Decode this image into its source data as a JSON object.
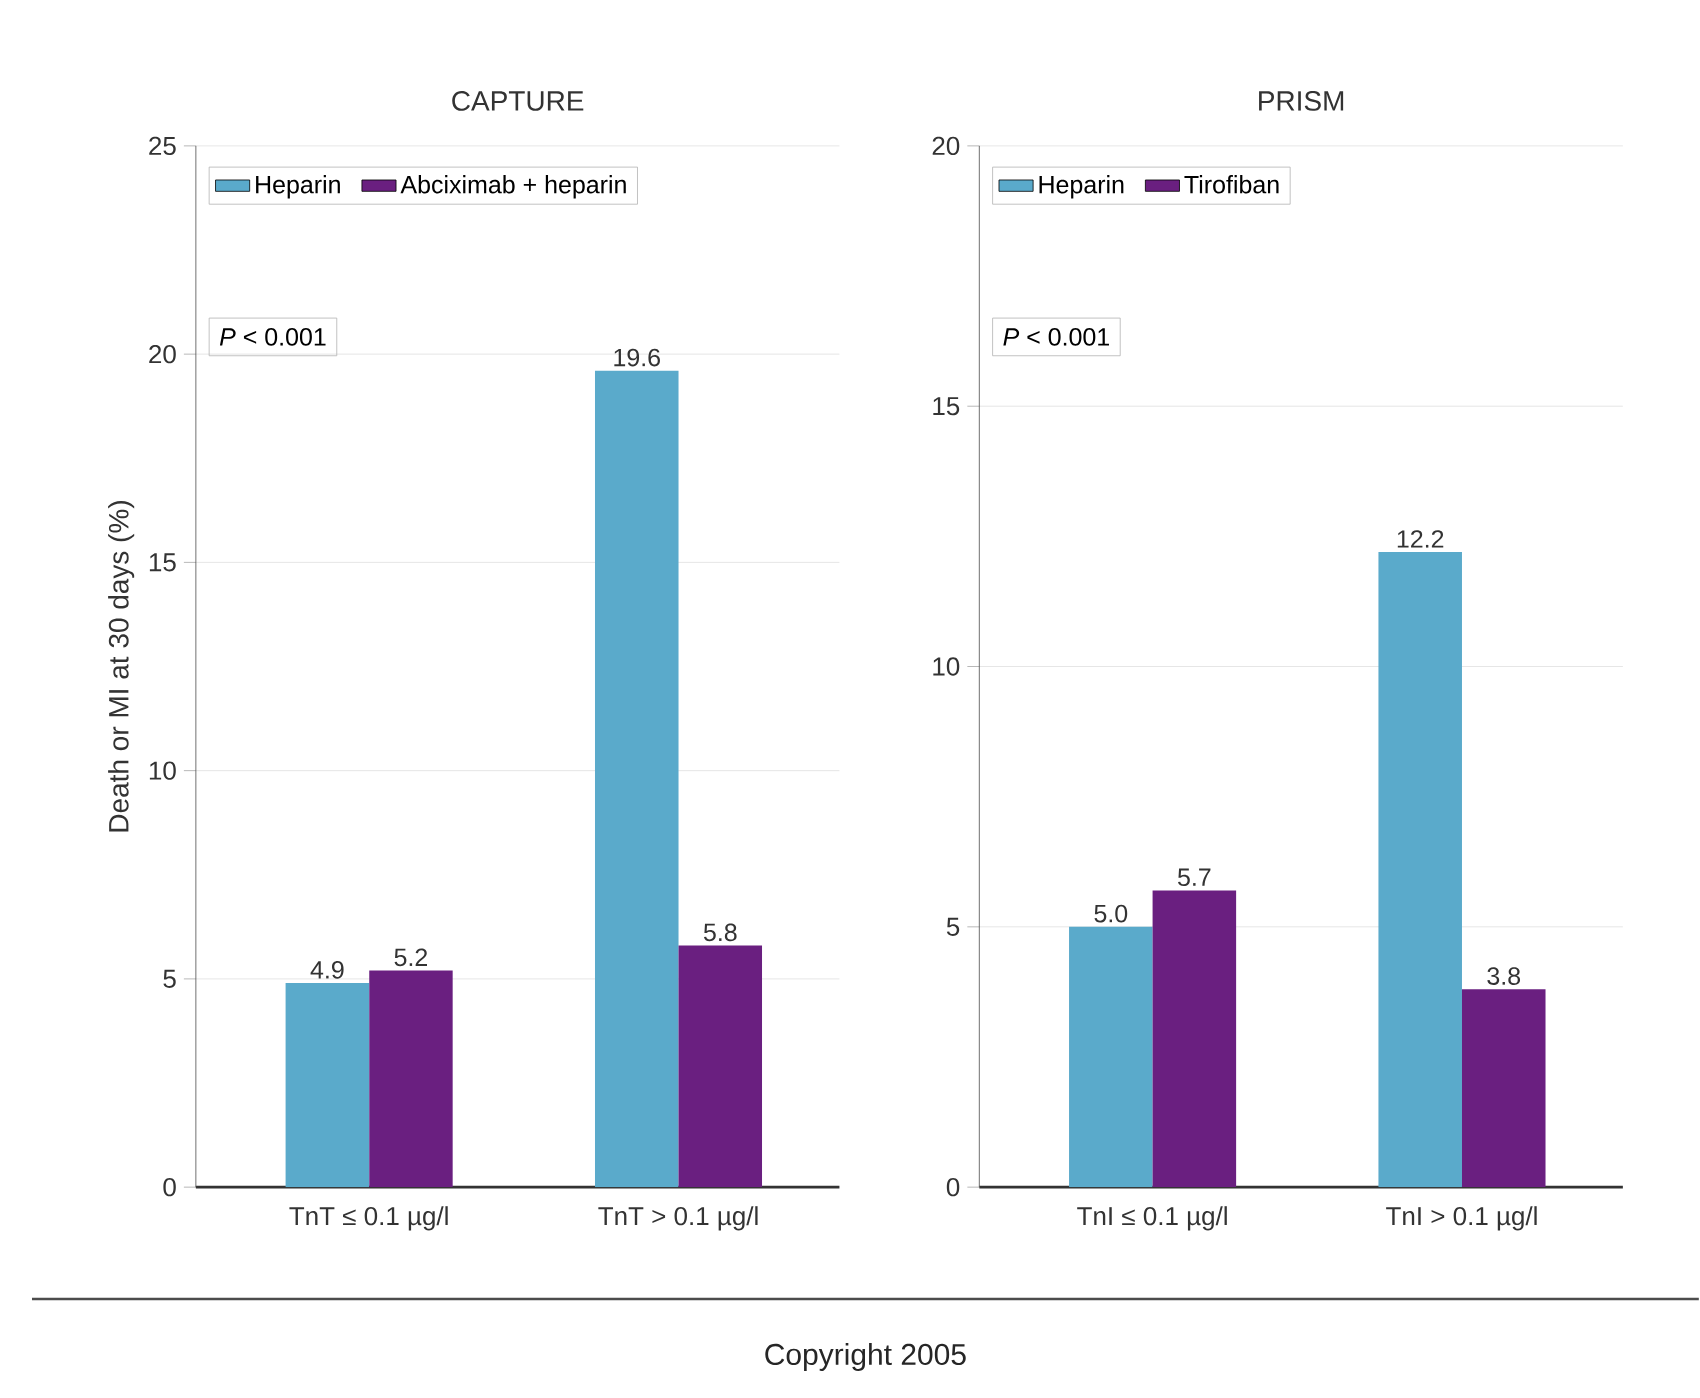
{
  "chart_data": [
    {
      "type": "bar",
      "title": "CAPTURE",
      "ylabel": "Death or MI at 30 days (%)",
      "categories": [
        "TnT ≤ 0.1 µg/l",
        "TnT > 0.1 µg/l"
      ],
      "series": [
        {
          "name": "Heparin",
          "color": "#5aaacb",
          "values": [
            4.9,
            19.6
          ],
          "value_labels": [
            "4.9",
            "19.6"
          ]
        },
        {
          "name": "Abciximab + heparin",
          "color": "#6a1f80",
          "values": [
            5.2,
            5.8
          ],
          "value_labels": [
            "5.2",
            "5.8"
          ]
        }
      ],
      "ylim": [
        0,
        25
      ],
      "yticks": [
        0,
        5,
        10,
        15,
        20,
        25
      ],
      "grid": "y",
      "legend": "top left",
      "annotations": [
        "*P* < 0.001"
      ]
    },
    {
      "type": "bar",
      "title": "PRISM",
      "categories": [
        "TnI ≤ 0.1 µg/l",
        "TnI > 0.1 µg/l"
      ],
      "series": [
        {
          "name": "Heparin",
          "color": "#5aaacb",
          "values": [
            5.0,
            12.2
          ],
          "value_labels": [
            "5.0",
            "12.2"
          ]
        },
        {
          "name": "Tirofiban",
          "color": "#6a1f80",
          "values": [
            5.7,
            3.8
          ],
          "value_labels": [
            "5.7",
            "3.8"
          ]
        }
      ],
      "ylim": [
        0,
        20
      ],
      "yticks": [
        0,
        5,
        10,
        15,
        20
      ],
      "grid": "y",
      "legend": "top left",
      "annotations": [
        "*P* < 0.001",
        "Copyright 2005"
      ]
    }
  ]
}
